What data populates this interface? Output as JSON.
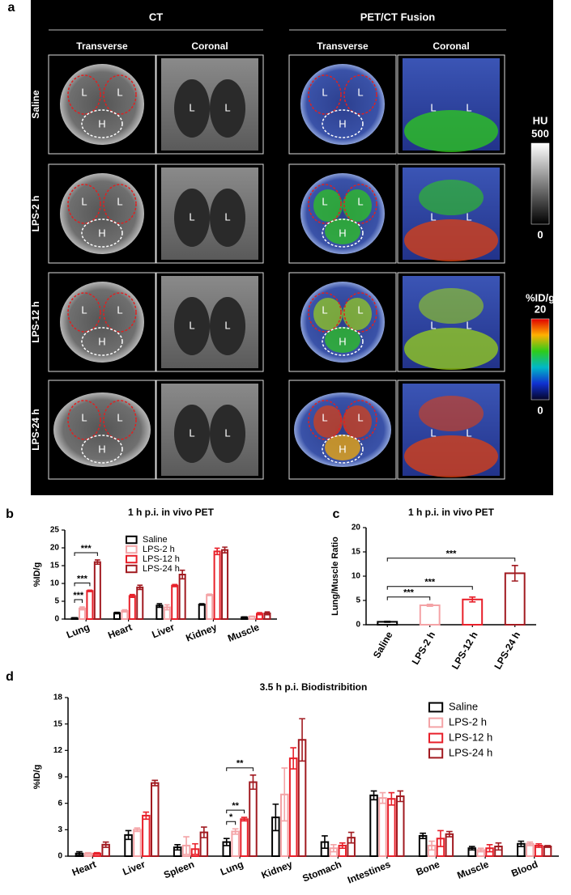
{
  "panel_a": {
    "label": "a",
    "groups": [
      "CT",
      "PET/CT Fusion"
    ],
    "views": [
      "Transverse",
      "Coronal"
    ],
    "rows": [
      "Saline",
      "LPS-2 h",
      "LPS-12 h",
      "LPS-24 h"
    ],
    "lung": "L",
    "heart": "H",
    "hu_bar": {
      "title": "HU",
      "max": 500,
      "min": 0
    },
    "pet_bar": {
      "title": "%ID/g",
      "max": 20,
      "min": 0
    }
  },
  "chart_data": [
    {
      "type": "bar",
      "panel_label": "b",
      "title": "1 h p.i. in vivo PET",
      "ylabel": "%ID/g",
      "categories": [
        "Lung",
        "Heart",
        "Liver",
        "Kidney",
        "Muscle"
      ],
      "series": [
        {
          "name": "Saline",
          "color": "#000000",
          "values": [
            0.3,
            1.7,
            3.8,
            4.1,
            0.5
          ],
          "errors": [
            0.1,
            0.2,
            0.5,
            0.2,
            0.1
          ]
        },
        {
          "name": "LPS-2 h",
          "color": "#f4a3a6",
          "values": [
            3.0,
            2.3,
            3.3,
            6.8,
            0.7
          ],
          "errors": [
            0.4,
            0.3,
            0.7,
            0.2,
            0.1
          ]
        },
        {
          "name": "LPS-12 h",
          "color": "#e8202a",
          "values": [
            7.9,
            6.5,
            9.4,
            19.0,
            1.5
          ],
          "errors": [
            0.2,
            0.4,
            0.3,
            0.9,
            0.3
          ]
        },
        {
          "name": "LPS-24 h",
          "color": "#a11a20",
          "values": [
            16.0,
            8.9,
            12.5,
            19.4,
            1.6
          ],
          "errors": [
            0.6,
            0.6,
            1.2,
            0.8,
            0.4
          ]
        }
      ],
      "ylim": [
        0,
        25
      ],
      "yticks": [
        0,
        5,
        10,
        15,
        20,
        25
      ],
      "legend": "upper center",
      "annotations": [
        {
          "text": "***",
          "category": "Lung",
          "between": [
            "Saline",
            "LPS-2 h"
          ]
        },
        {
          "text": "***",
          "category": "Lung",
          "between": [
            "Saline",
            "LPS-12 h"
          ]
        },
        {
          "text": "***",
          "category": "Lung",
          "between": [
            "Saline",
            "LPS-24 h"
          ]
        }
      ]
    },
    {
      "type": "bar",
      "panel_label": "c",
      "title": "1 h p.i. in vivo PET",
      "ylabel": "Lung/Muscle Ratio",
      "categories": [
        "Saline",
        "LPS-2 h",
        "LPS-12 h",
        "LPS-24 h"
      ],
      "values": [
        0.6,
        4.0,
        5.2,
        10.6
      ],
      "errors": [
        0.1,
        0.2,
        0.5,
        1.6
      ],
      "colors": [
        "#000000",
        "#f4a3a6",
        "#e8202a",
        "#a11a20"
      ],
      "ylim": [
        0,
        20
      ],
      "yticks": [
        0,
        5,
        10,
        15,
        20
      ],
      "annotations": [
        {
          "text": "***",
          "between": [
            "Saline",
            "LPS-2 h"
          ]
        },
        {
          "text": "***",
          "between": [
            "Saline",
            "LPS-12 h"
          ]
        },
        {
          "text": "***",
          "between": [
            "Saline",
            "LPS-24 h"
          ]
        }
      ]
    },
    {
      "type": "bar",
      "panel_label": "d",
      "title": "3.5 h p.i. Biodistribition",
      "ylabel": "%ID/g",
      "categories": [
        "Heart",
        "Liver",
        "Spleen",
        "Lung",
        "Kidney",
        "Stomach",
        "Intestines",
        "Bone",
        "Muscle",
        "Blood"
      ],
      "series": [
        {
          "name": "Saline",
          "color": "#000000",
          "values": [
            0.3,
            2.4,
            1.0,
            1.6,
            4.4,
            1.6,
            6.9,
            2.3,
            0.9,
            1.4
          ],
          "errors": [
            0.2,
            0.5,
            0.3,
            0.4,
            1.5,
            0.7,
            0.5,
            0.3,
            0.2,
            0.3
          ]
        },
        {
          "name": "LPS-2 h",
          "color": "#f4a3a6",
          "values": [
            0.3,
            3.0,
            1.2,
            2.8,
            7.0,
            0.9,
            6.6,
            1.2,
            0.7,
            1.4
          ],
          "errors": [
            0.1,
            0.2,
            1.0,
            0.3,
            3.0,
            0.4,
            0.6,
            0.5,
            0.2,
            0.2
          ]
        },
        {
          "name": "LPS-12 h",
          "color": "#e8202a",
          "values": [
            0.3,
            4.6,
            0.8,
            4.2,
            11.1,
            1.2,
            6.5,
            2.0,
            0.9,
            1.2
          ],
          "errors": [
            0.1,
            0.4,
            0.6,
            0.2,
            1.2,
            0.3,
            0.7,
            0.9,
            0.4,
            0.2
          ]
        },
        {
          "name": "LPS-24 h",
          "color": "#a11a20",
          "values": [
            1.3,
            8.3,
            2.7,
            8.4,
            13.2,
            2.1,
            6.8,
            2.5,
            1.1,
            1.1
          ],
          "errors": [
            0.3,
            0.3,
            0.6,
            0.8,
            2.4,
            0.6,
            0.6,
            0.3,
            0.4,
            0.1
          ]
        }
      ],
      "ylim": [
        0,
        18
      ],
      "yticks": [
        0,
        3,
        6,
        9,
        12,
        15,
        18
      ],
      "legend": "upper right",
      "annotations": [
        {
          "text": "*",
          "category": "Lung",
          "between": [
            "Saline",
            "LPS-2 h"
          ]
        },
        {
          "text": "**",
          "category": "Lung",
          "between": [
            "Saline",
            "LPS-12 h"
          ]
        },
        {
          "text": "**",
          "category": "Lung",
          "between": [
            "Saline",
            "LPS-24 h"
          ]
        }
      ]
    }
  ]
}
